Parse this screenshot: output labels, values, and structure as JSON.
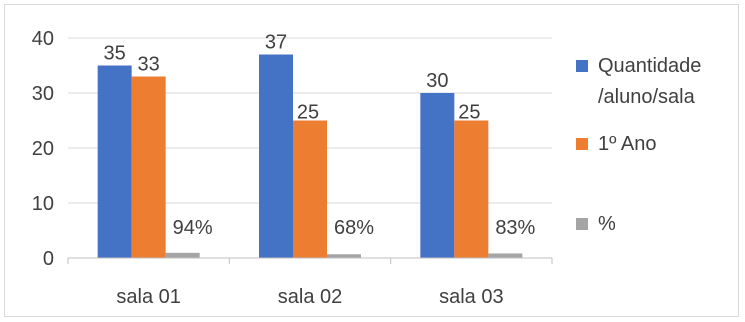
{
  "chart_data": {
    "type": "bar",
    "categories": [
      "sala 01",
      "sala 02",
      "sala 03"
    ],
    "series": [
      {
        "name": "Quantidade /aluno/sala",
        "legend_lines": [
          "Quantidade",
          "/aluno/sala"
        ],
        "color": "#4472c4",
        "values": [
          35,
          37,
          30
        ],
        "labels": [
          "35",
          "37",
          "30"
        ]
      },
      {
        "name": "1º Ano",
        "legend_lines": [
          "1º Ano"
        ],
        "color": "#ed7d31",
        "values": [
          33,
          25,
          25
        ],
        "labels": [
          "33",
          "25",
          "25"
        ]
      },
      {
        "name": "%",
        "legend_lines": [
          "%"
        ],
        "color": "#a5a5a5",
        "values": [
          0.94,
          0.68,
          0.83
        ],
        "labels": [
          "94%",
          "68%",
          "83%"
        ]
      }
    ],
    "ylim": [
      0,
      40
    ],
    "yticks": [
      "0",
      "10",
      "20",
      "30",
      "40"
    ],
    "grid": true,
    "legend_position": "right"
  }
}
